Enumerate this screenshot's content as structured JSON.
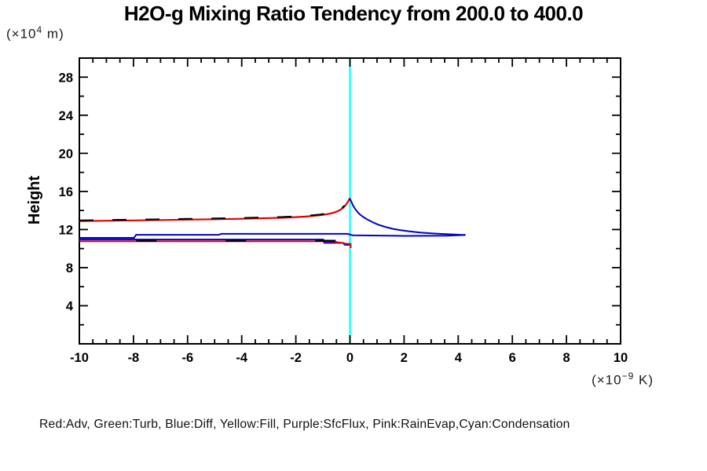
{
  "title": "H2O-g Mixing Ratio Tendency from 200.0 to 400.0",
  "y_axis_label": "Height",
  "y_axis_unit": {
    "prefix": "(×10",
    "sup": "4",
    "suffix": " m)"
  },
  "x_axis_unit": {
    "prefix": "(×10",
    "sup": "−9",
    "suffix": " K)"
  },
  "legend": "Red:Adv, Green:Turb, Blue:Diff, Yellow:Fill, Purple:SfcFlux, Pink:RainEvap,Cyan:Condensation",
  "chart_data": {
    "type": "line",
    "title": "H2O-g Mixing Ratio Tendency from 200.0 to 400.0",
    "xlabel": "(×10⁻⁹ K)",
    "ylabel": "Height (×10⁴ m)",
    "xlim": [
      -10,
      10
    ],
    "ylim": [
      0,
      30
    ],
    "x_major_ticks": [
      -10,
      -8,
      -6,
      -4,
      -2,
      0,
      2,
      4,
      6,
      8,
      10
    ],
    "x_minor_step": 0.5,
    "y_major_ticks": [
      4,
      8,
      12,
      16,
      20,
      24,
      28
    ],
    "y_minor_step": 2,
    "grid": false,
    "legend_position": "bottom-text-line",
    "zero_line": {
      "x": 0,
      "color": "#00FFFF",
      "width": 2.2
    },
    "colors": {
      "adv": "#DE0000",
      "turb": "#00A000",
      "diff": "#0000CC",
      "fill": "#D8C800",
      "sfcflux": "#800080",
      "rainevap": "#FF69B4",
      "condensation": "#00FFFF",
      "dash_overlay": "#000000",
      "axis": "#000000"
    },
    "series": [
      {
        "name": "diff-level",
        "legend_key": "Blue:Diff",
        "color": "#0000CC",
        "width": 2,
        "dash": "",
        "dy": 0,
        "points": [
          [
            -10,
            11.13
          ],
          [
            -7.98,
            11.13
          ],
          [
            -7.9,
            11.45
          ],
          [
            -4.85,
            11.45
          ],
          [
            -4.75,
            11.55
          ],
          [
            -0.1,
            11.55
          ],
          [
            0.1,
            11.4
          ],
          [
            2.0,
            11.33
          ],
          [
            3.6,
            11.36
          ],
          [
            4.27,
            11.43
          ]
        ]
      },
      {
        "name": "diff-lower",
        "legend_key": "Blue:Diff",
        "color": "#0000CC",
        "width": 2,
        "dash": "",
        "dy": 0,
        "points": [
          [
            -10,
            10.95
          ],
          [
            -0.98,
            10.95
          ],
          [
            -0.95,
            10.6
          ],
          [
            -0.25,
            10.6
          ],
          [
            -0.2,
            10.4
          ],
          [
            -0.02,
            10.38
          ]
        ]
      },
      {
        "name": "adv-lower",
        "legend_key": "Red:Adv",
        "color": "#DE0000",
        "width": 2,
        "dash": "",
        "dy": 0,
        "points": [
          [
            -10,
            10.76
          ],
          [
            -0.7,
            10.76
          ],
          [
            -0.35,
            10.62
          ],
          [
            -0.12,
            10.5
          ],
          [
            0.03,
            10.5
          ],
          [
            0.03,
            10.05
          ]
        ]
      },
      {
        "name": "adv-lower-dash-overlay",
        "legend_key": "",
        "color": "#000000",
        "width": 2.4,
        "dash": "26,88",
        "dy": -1,
        "points": [
          [
            -7.9,
            10.74
          ],
          [
            -0.3,
            10.74
          ]
        ]
      },
      {
        "name": "adv-upper",
        "legend_key": "Red:Adv",
        "color": "#DE0000",
        "width": 2.2,
        "dash": "",
        "dy": 0,
        "points": [
          [
            -10,
            12.88
          ],
          [
            -9,
            12.92
          ],
          [
            -8,
            12.96
          ],
          [
            -7,
            13.0
          ],
          [
            -6,
            13.04
          ],
          [
            -5,
            13.08
          ],
          [
            -4,
            13.13
          ],
          [
            -3,
            13.2
          ],
          [
            -2.5,
            13.24
          ],
          [
            -2,
            13.3
          ],
          [
            -1.7,
            13.35
          ],
          [
            -1.4,
            13.42
          ],
          [
            -1.1,
            13.5
          ],
          [
            -0.9,
            13.58
          ],
          [
            -0.7,
            13.7
          ],
          [
            -0.55,
            13.82
          ],
          [
            -0.42,
            13.97
          ],
          [
            -0.3,
            14.17
          ],
          [
            -0.2,
            14.43
          ],
          [
            -0.12,
            14.72
          ],
          [
            -0.06,
            14.98
          ],
          [
            -0.01,
            15.28
          ]
        ]
      },
      {
        "name": "adv-upper-dash-overlay",
        "legend_key": "",
        "color": "#000000",
        "width": 2,
        "dash": "18,24",
        "dy": -1,
        "points": [
          [
            -10,
            12.88
          ],
          [
            -9,
            12.92
          ],
          [
            -8,
            12.96
          ],
          [
            -7,
            13.0
          ],
          [
            -6,
            13.04
          ],
          [
            -5,
            13.08
          ],
          [
            -4,
            13.13
          ],
          [
            -3,
            13.2
          ],
          [
            -2.5,
            13.24
          ],
          [
            -2,
            13.3
          ],
          [
            -1.7,
            13.35
          ],
          [
            -1.4,
            13.42
          ],
          [
            -1.1,
            13.5
          ],
          [
            -0.9,
            13.58
          ],
          [
            -0.7,
            13.7
          ],
          [
            -0.55,
            13.82
          ],
          [
            -0.42,
            13.97
          ],
          [
            -0.3,
            14.17
          ],
          [
            -0.2,
            14.43
          ]
        ]
      },
      {
        "name": "diff-peak",
        "legend_key": "Blue:Diff",
        "color": "#0000CC",
        "width": 2,
        "dash": "",
        "dy": 0,
        "points": [
          [
            -0.01,
            15.28
          ],
          [
            0.04,
            15.0
          ],
          [
            0.1,
            14.6
          ],
          [
            0.17,
            14.25
          ],
          [
            0.26,
            13.9
          ],
          [
            0.36,
            13.6
          ],
          [
            0.5,
            13.3
          ],
          [
            0.65,
            13.05
          ],
          [
            0.85,
            12.75
          ],
          [
            1.05,
            12.5
          ],
          [
            1.3,
            12.28
          ],
          [
            1.6,
            12.07
          ],
          [
            1.9,
            11.92
          ],
          [
            2.2,
            11.8
          ],
          [
            2.6,
            11.68
          ],
          [
            3.0,
            11.6
          ],
          [
            3.4,
            11.54
          ],
          [
            3.8,
            11.49
          ],
          [
            4.1,
            11.45
          ],
          [
            4.27,
            11.43
          ]
        ]
      }
    ]
  }
}
